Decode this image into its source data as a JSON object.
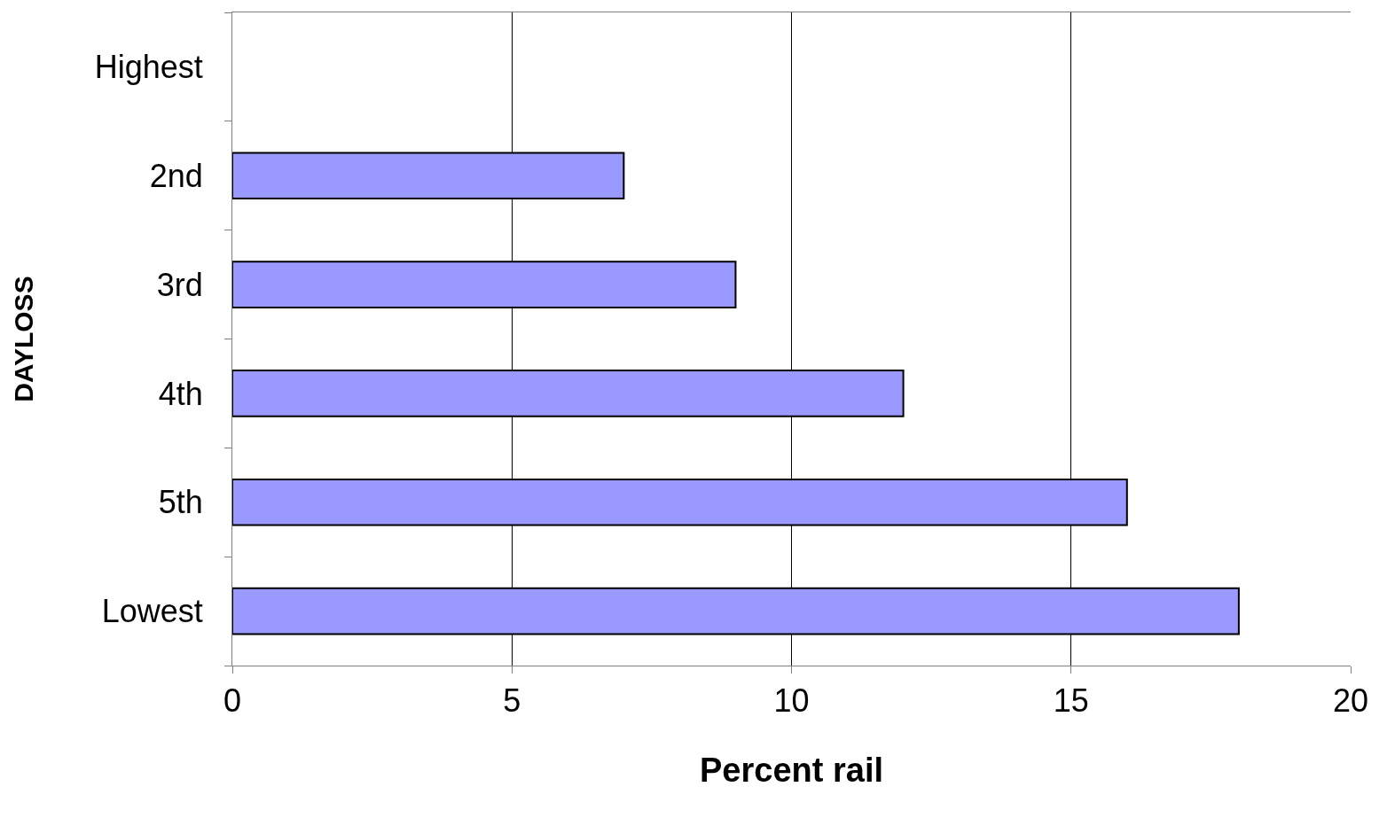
{
  "chart_data": {
    "type": "bar",
    "orientation": "horizontal",
    "xlabel": "Percent rail",
    "ylabel": "DAYLOSS",
    "categories": [
      "Highest",
      "2nd",
      "3rd",
      "4th",
      "5th",
      "Lowest"
    ],
    "values": [
      null,
      7,
      9,
      12,
      16,
      18
    ],
    "color": "#9999ff",
    "xlim": [
      0,
      20
    ],
    "xticks": [
      0,
      5,
      10,
      15,
      20
    ],
    "grid": "x"
  }
}
